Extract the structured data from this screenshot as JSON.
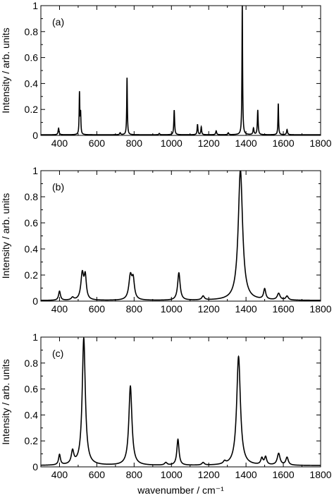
{
  "chart_data": [
    {
      "type": "line",
      "panel_label": "(a)",
      "xlabel": "",
      "ylabel": "Intensity / arb. units",
      "xlim": [
        300,
        1800
      ],
      "ylim": [
        0,
        1
      ],
      "xticks": [
        400,
        600,
        800,
        1000,
        1200,
        1400,
        1600,
        1800
      ],
      "yticks": [
        0,
        0.2,
        0.4,
        0.6,
        0.8,
        1
      ],
      "xtick_labels": [
        "400",
        "600",
        "800",
        "1000",
        "1200",
        "1400",
        "1600",
        "1800"
      ],
      "ytick_labels": [
        "0",
        "0.2",
        "0.4",
        "0.6",
        "0.8",
        "1"
      ],
      "baseline": 0.005,
      "peaks": [
        {
          "x": 395,
          "height": 0.05,
          "width": 3
        },
        {
          "x": 507,
          "height": 0.32,
          "width": 2
        },
        {
          "x": 513,
          "height": 0.16,
          "width": 2
        },
        {
          "x": 725,
          "height": 0.015,
          "width": 3
        },
        {
          "x": 762,
          "height": 0.44,
          "width": 2
        },
        {
          "x": 935,
          "height": 0.01,
          "width": 3
        },
        {
          "x": 1015,
          "height": 0.19,
          "width": 2.5
        },
        {
          "x": 1140,
          "height": 0.08,
          "width": 2.5
        },
        {
          "x": 1160,
          "height": 0.06,
          "width": 2.5
        },
        {
          "x": 1240,
          "height": 0.03,
          "width": 3
        },
        {
          "x": 1305,
          "height": 0.015,
          "width": 3
        },
        {
          "x": 1380,
          "height": 1.0,
          "width": 2
        },
        {
          "x": 1440,
          "height": 0.05,
          "width": 3
        },
        {
          "x": 1463,
          "height": 0.19,
          "width": 2.5
        },
        {
          "x": 1573,
          "height": 0.24,
          "width": 2
        },
        {
          "x": 1620,
          "height": 0.04,
          "width": 3
        }
      ]
    },
    {
      "type": "line",
      "panel_label": "(b)",
      "xlabel": "",
      "ylabel": "Intensity / arb. units",
      "xlim": [
        300,
        1800
      ],
      "ylim": [
        0,
        1
      ],
      "xticks": [
        400,
        600,
        800,
        1000,
        1200,
        1400,
        1600,
        1800
      ],
      "yticks": [
        0,
        0.2,
        0.4,
        0.6,
        0.8,
        1
      ],
      "xtick_labels": [
        "400",
        "600",
        "800",
        "1000",
        "1200",
        "1400",
        "1600",
        "1800"
      ],
      "ytick_labels": [
        "0",
        "0.2",
        "0.4",
        "0.6",
        "0.8",
        "1"
      ],
      "baseline": 0.005,
      "peaks": [
        {
          "x": 400,
          "height": 0.07,
          "width": 6
        },
        {
          "x": 470,
          "height": 0.02,
          "width": 8
        },
        {
          "x": 522,
          "height": 0.2,
          "width": 9
        },
        {
          "x": 538,
          "height": 0.17,
          "width": 7
        },
        {
          "x": 780,
          "height": 0.18,
          "width": 10
        },
        {
          "x": 795,
          "height": 0.14,
          "width": 8
        },
        {
          "x": 1040,
          "height": 0.21,
          "width": 8
        },
        {
          "x": 1170,
          "height": 0.03,
          "width": 8
        },
        {
          "x": 1370,
          "height": 1.0,
          "width": 14
        },
        {
          "x": 1500,
          "height": 0.08,
          "width": 7
        },
        {
          "x": 1575,
          "height": 0.05,
          "width": 9
        },
        {
          "x": 1620,
          "height": 0.03,
          "width": 8
        }
      ]
    },
    {
      "type": "line",
      "panel_label": "(c)",
      "xlabel": "wavenumber / cm⁻¹",
      "ylabel": "Intensity / arb. units",
      "xlim": [
        300,
        1800
      ],
      "ylim": [
        0,
        1
      ],
      "xticks": [
        400,
        600,
        800,
        1000,
        1200,
        1400,
        1600,
        1800
      ],
      "yticks": [
        0,
        0.2,
        0.4,
        0.6,
        0.8,
        1
      ],
      "xtick_labels": [
        "400",
        "600",
        "800",
        "1000",
        "1200",
        "1400",
        "1600",
        "1800"
      ],
      "ytick_labels": [
        "0",
        "0.2",
        "0.4",
        "0.6",
        "0.8",
        "1"
      ],
      "baseline": 0.01,
      "peaks": [
        {
          "x": 400,
          "height": 0.08,
          "width": 6
        },
        {
          "x": 470,
          "height": 0.1,
          "width": 8
        },
        {
          "x": 530,
          "height": 0.98,
          "width": 10
        },
        {
          "x": 780,
          "height": 0.61,
          "width": 10
        },
        {
          "x": 970,
          "height": 0.02,
          "width": 8
        },
        {
          "x": 1035,
          "height": 0.2,
          "width": 7
        },
        {
          "x": 1170,
          "height": 0.02,
          "width": 8
        },
        {
          "x": 1285,
          "height": 0.02,
          "width": 8
        },
        {
          "x": 1360,
          "height": 0.84,
          "width": 12
        },
        {
          "x": 1485,
          "height": 0.05,
          "width": 7
        },
        {
          "x": 1505,
          "height": 0.06,
          "width": 7
        },
        {
          "x": 1575,
          "height": 0.09,
          "width": 9
        },
        {
          "x": 1620,
          "height": 0.06,
          "width": 8
        }
      ]
    }
  ]
}
